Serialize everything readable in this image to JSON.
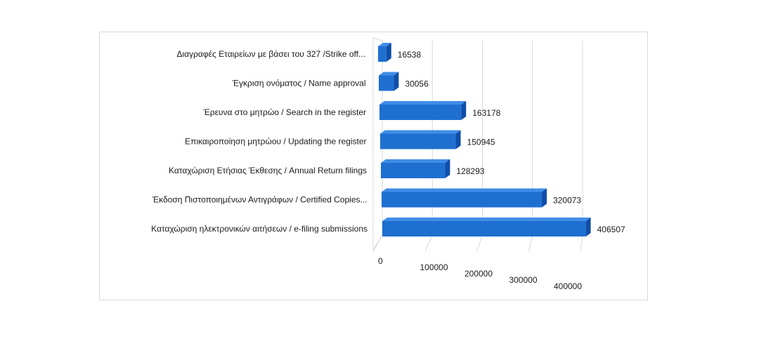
{
  "chart_data": {
    "type": "bar",
    "orientation": "horizontal",
    "style": "3d",
    "categories": [
      "Διαγραφές Εταιρείων  με  βάσει του 327 /Strike off...",
      "Έγκριση ονόματος / Name approval",
      "Έρευνα στο μητρώο / Search in the register",
      "Επικαιροποίηση μητρώου / Updating the register",
      "Καταχώριση Ετήσιας Έκθεσης / Annual Return filings",
      "Έκδοση Πιστοποιημένων Αντιγράφων / Certified Copies...",
      "Καταχώριση ηλεκτρονικών αιτήσεων / e-filing submissions"
    ],
    "values": [
      16538,
      30056,
      163178,
      150945,
      128293,
      320073,
      406507
    ],
    "value_labels": [
      "16538",
      "30056",
      "163178",
      "150945",
      "128293",
      "320073",
      "406507"
    ],
    "x_ticks": [
      "0",
      "100000",
      "200000",
      "300000",
      "400000"
    ],
    "x_tick_values": [
      0,
      100000,
      200000,
      300000,
      400000
    ],
    "xlim": [
      0,
      400000
    ],
    "grid": true,
    "legend": "none",
    "bar_color": "#1f6fd1",
    "bar_top_color": "#3f8de6",
    "bar_end_color": "#0f4ea8",
    "grid_color": "#d9d9d9"
  }
}
